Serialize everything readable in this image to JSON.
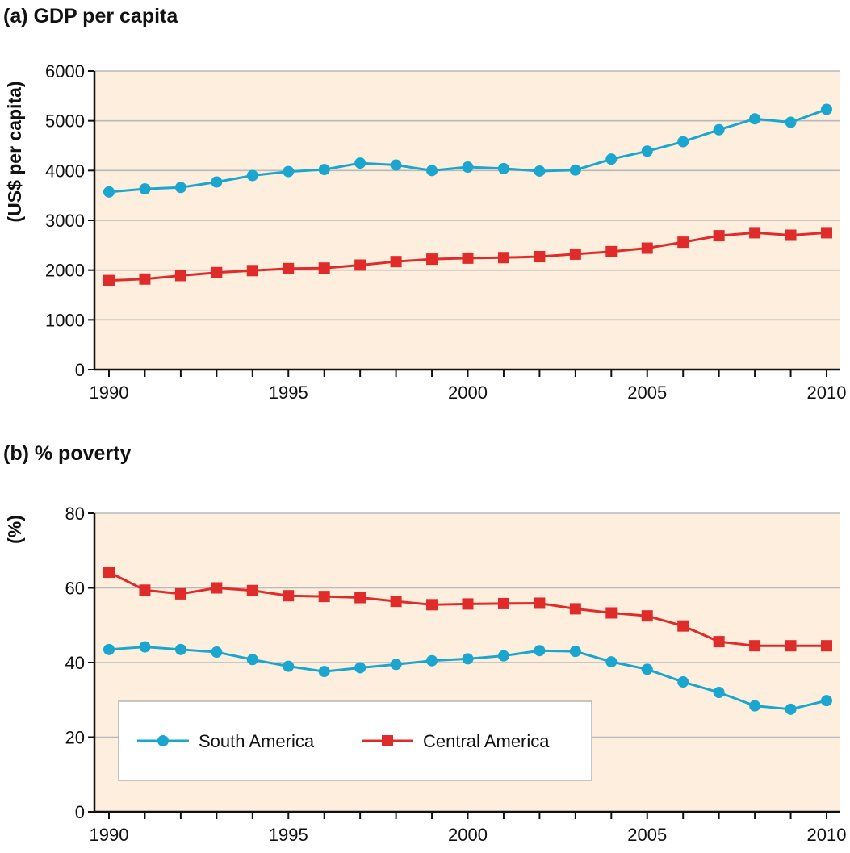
{
  "chart_data": [
    {
      "type": "line",
      "title": "(a) GDP per capita",
      "ylabel": "(US$ per capita)",
      "xlabel": "",
      "x": [
        1990,
        1991,
        1992,
        1993,
        1994,
        1995,
        1996,
        1997,
        1998,
        1999,
        2000,
        2001,
        2002,
        2003,
        2004,
        2005,
        2006,
        2007,
        2008,
        2009,
        2010
      ],
      "xticks": [
        "1990",
        "1995",
        "2000",
        "2005",
        "2010"
      ],
      "yticks": [
        "0",
        "1000",
        "2000",
        "3000",
        "4000",
        "5000",
        "6000"
      ],
      "ylim": [
        0,
        6000
      ],
      "xlim": [
        1990,
        2010
      ],
      "grid": true,
      "background": "#fdeedd",
      "series": [
        {
          "name": "South America",
          "color": "#1aa6cf",
          "marker": "circle",
          "values": [
            3570,
            3630,
            3660,
            3770,
            3900,
            3980,
            4020,
            4150,
            4110,
            4000,
            4070,
            4040,
            3990,
            4010,
            4230,
            4390,
            4580,
            4820,
            5040,
            4970,
            5230
          ]
        },
        {
          "name": "Central America",
          "color": "#e02b2b",
          "marker": "square",
          "values": [
            1790,
            1820,
            1890,
            1950,
            1990,
            2030,
            2040,
            2100,
            2170,
            2220,
            2240,
            2250,
            2270,
            2320,
            2370,
            2440,
            2560,
            2690,
            2750,
            2700,
            2750
          ]
        }
      ]
    },
    {
      "type": "line",
      "title": "(b) % poverty",
      "ylabel": "(%)",
      "xlabel": "",
      "x": [
        1990,
        1991,
        1992,
        1993,
        1994,
        1995,
        1996,
        1997,
        1998,
        1999,
        2000,
        2001,
        2002,
        2003,
        2004,
        2005,
        2006,
        2007,
        2008,
        2009,
        2010
      ],
      "xticks": [
        "1990",
        "1995",
        "2000",
        "2005",
        "2010"
      ],
      "yticks": [
        "0",
        "20",
        "40",
        "60",
        "80"
      ],
      "ylim": [
        0,
        80
      ],
      "xlim": [
        1990,
        2010
      ],
      "grid": true,
      "background": "#fdeedd",
      "legend": {
        "placement": "bottom-left",
        "entries": [
          "South America",
          "Central America"
        ]
      },
      "series": [
        {
          "name": "South America",
          "color": "#1aa6cf",
          "marker": "circle",
          "values": [
            43.5,
            44.2,
            43.5,
            42.8,
            40.8,
            39.0,
            37.6,
            38.6,
            39.5,
            40.5,
            41.0,
            41.8,
            43.2,
            43.0,
            40.2,
            38.2,
            34.8,
            32.0,
            28.4,
            27.5,
            29.8
          ]
        },
        {
          "name": "Central America",
          "color": "#e02b2b",
          "marker": "square",
          "values": [
            64.2,
            59.4,
            58.4,
            60.0,
            59.3,
            57.9,
            57.7,
            57.4,
            56.4,
            55.5,
            55.7,
            55.8,
            55.9,
            54.4,
            53.3,
            52.5,
            49.8,
            45.6,
            44.5,
            44.5,
            44.5
          ]
        }
      ]
    }
  ]
}
